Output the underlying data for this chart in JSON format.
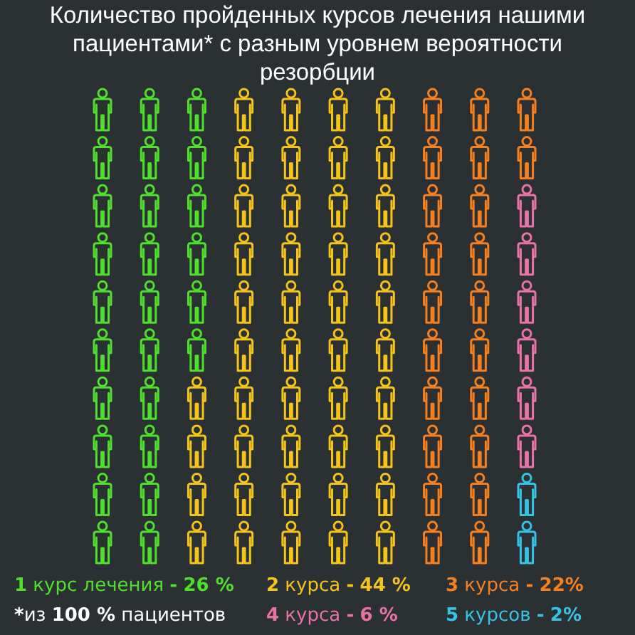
{
  "chart_data": {
    "type": "other",
    "title": "Количество пройденных курсов лечения нашими пациентами* с разным уровнем вероятности резорбции",
    "categories": [
      "1 курс лечения -",
      "2 курса -",
      "3 курса -",
      "4 курса -",
      "5 курсов -"
    ],
    "values": [
      26,
      44,
      22,
      6,
      2
    ],
    "value_labels": [
      "26 %",
      "44 %",
      "22%",
      "6 %",
      "2%"
    ],
    "colors": [
      "#4fe02c",
      "#f5c41c",
      "#f5801f",
      "#e873a8",
      "#35c4e6"
    ],
    "annotations": [
      "*из 100 % пациентов"
    ]
  }
}
